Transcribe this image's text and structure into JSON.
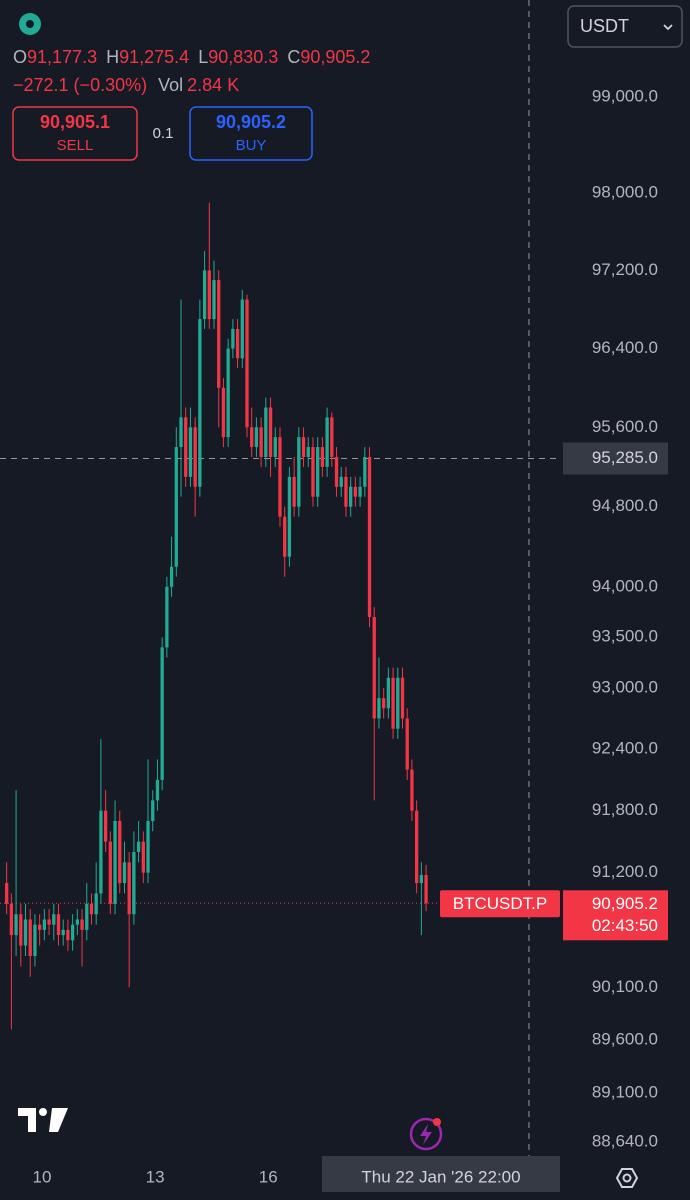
{
  "header": {
    "ohlc": [
      {
        "key": "O",
        "value": "91,177.3"
      },
      {
        "key": "H",
        "value": "91,275.4"
      },
      {
        "key": "L",
        "value": "90,830.3"
      },
      {
        "key": "C",
        "value": "90,905.2"
      }
    ],
    "change": "−272.1 (−0.30%)",
    "volume_key": "Vol",
    "volume": "2.84 K",
    "sell_price": "90,905.1",
    "sell_label": "SELL",
    "quantity": "0.1",
    "buy_price": "90,905.2",
    "buy_label": "BUY",
    "currency": "USDT"
  },
  "chart_data": {
    "type": "candlestick",
    "symbol": "BTCUSDT.P",
    "countdown": "02:43:50",
    "up_color": "#22ab94",
    "down_color": "#f23645",
    "log_scale": true,
    "x": [
      9,
      9.125,
      9.25,
      9.375,
      9.5,
      9.625,
      9.75,
      9.875,
      10,
      10.125,
      10.25,
      10.375,
      10.5,
      10.625,
      10.75,
      10.875,
      11,
      11.125,
      11.25,
      11.375,
      11.5,
      11.625,
      11.75,
      11.875,
      12,
      12.125,
      12.25,
      12.375,
      12.5,
      12.625,
      12.75,
      12.875,
      13,
      13.125,
      13.25,
      13.375,
      13.5,
      13.625,
      13.75,
      13.875,
      14,
      14.125,
      14.25,
      14.375,
      14.5,
      14.625,
      14.75,
      14.875,
      15,
      15.125,
      15.25,
      15.375,
      15.5,
      15.625,
      15.75,
      15.875,
      16,
      16.125,
      16.25,
      16.375,
      16.5,
      16.625,
      16.75,
      16.875,
      17,
      17.125,
      17.25,
      17.375,
      17.5,
      17.625,
      17.75,
      17.875,
      18,
      18.125,
      18.25,
      18.375,
      18.5,
      18.625,
      18.75,
      18.875,
      19,
      19.125,
      19.25,
      19.375,
      19.5,
      19.625,
      19.75,
      19.875,
      20,
      20.125
    ],
    "open": [
      91100,
      90900,
      90600,
      90800,
      90500,
      90750,
      90400,
      90700,
      90650,
      90750,
      90700,
      90800,
      90600,
      90650,
      90550,
      90700,
      90750,
      90650,
      90900,
      90800,
      91000,
      91800,
      91500,
      90900,
      91700,
      91100,
      91300,
      90800,
      91400,
      91500,
      91200,
      91700,
      91900,
      92100,
      93400,
      94000,
      94200,
      95400,
      95700,
      95100,
      95600,
      95000,
      96700,
      97200,
      96700,
      97100,
      96000,
      95500,
      96400,
      96600,
      96300,
      96900,
      95600,
      95400,
      95600,
      95300,
      95800,
      95300,
      95500,
      94700,
      94300,
      95100,
      94800,
      95500,
      95300,
      95400,
      94900,
      95400,
      95200,
      95700,
      95300,
      95000,
      95100,
      94800,
      95000,
      94900,
      95000,
      95300,
      93700,
      92700,
      92900,
      92800,
      93100,
      92600,
      93100,
      92700,
      92200,
      91800,
      91100,
      91177.3
    ],
    "high": [
      91300,
      91000,
      92000,
      90900,
      90900,
      90850,
      90800,
      90800,
      90850,
      90850,
      90900,
      90900,
      90750,
      90750,
      90800,
      90850,
      90850,
      91100,
      91000,
      91300,
      92500,
      92000,
      91600,
      91900,
      91800,
      91500,
      91400,
      91600,
      91700,
      91600,
      92300,
      92000,
      92300,
      93500,
      94100,
      94500,
      95600,
      96900,
      95800,
      95800,
      95700,
      96900,
      97400,
      97900,
      97300,
      97200,
      96100,
      96500,
      96700,
      96700,
      97000,
      96950,
      95800,
      95700,
      95700,
      95900,
      95900,
      95600,
      95600,
      94800,
      95200,
      95300,
      95600,
      95600,
      95500,
      95500,
      95500,
      95500,
      95800,
      95750,
      95400,
      95200,
      95200,
      95100,
      95100,
      95100,
      95400,
      95400,
      93800,
      93300,
      93000,
      93200,
      93200,
      93200,
      93200,
      92800,
      92300,
      91900,
      91300,
      91275.4
    ],
    "low": [
      90800,
      89700,
      90400,
      90300,
      90400,
      90200,
      90300,
      90500,
      90550,
      90600,
      90550,
      90500,
      90500,
      90450,
      90450,
      90600,
      90300,
      90550,
      90700,
      90700,
      90900,
      91400,
      90800,
      90800,
      91000,
      91000,
      90100,
      90700,
      91300,
      91100,
      91100,
      91600,
      91800,
      92000,
      93300,
      93900,
      94100,
      94900,
      95000,
      95000,
      94700,
      94900,
      96600,
      96600,
      96600,
      95600,
      95400,
      95400,
      96300,
      96200,
      96200,
      95500,
      95300,
      95300,
      95200,
      95200,
      95100,
      95200,
      94600,
      94100,
      94200,
      94700,
      94700,
      95200,
      95200,
      94800,
      94800,
      95100,
      95100,
      95200,
      94900,
      94900,
      94700,
      94700,
      94800,
      94800,
      94900,
      93600,
      91900,
      92600,
      92700,
      92700,
      92500,
      92500,
      92600,
      92100,
      91700,
      91000,
      90600,
      90830.3
    ],
    "close": [
      90900,
      90600,
      90800,
      90500,
      90750,
      90400,
      90700,
      90650,
      90750,
      90700,
      90800,
      90600,
      90650,
      90550,
      90700,
      90750,
      90650,
      90900,
      90800,
      91000,
      91800,
      91500,
      90900,
      91700,
      91100,
      91300,
      90800,
      91400,
      91500,
      91200,
      91700,
      91900,
      92100,
      93400,
      94000,
      94200,
      95400,
      95700,
      95100,
      95600,
      95000,
      96700,
      97200,
      96700,
      97100,
      96000,
      95500,
      96400,
      96600,
      96300,
      96900,
      95600,
      95400,
      95600,
      95300,
      95800,
      95300,
      95500,
      94700,
      94300,
      95100,
      94800,
      95500,
      95300,
      95400,
      94900,
      95400,
      95200,
      95700,
      95300,
      95000,
      95100,
      94800,
      95000,
      94900,
      95000,
      95300,
      93700,
      92700,
      92900,
      92800,
      93100,
      92600,
      93100,
      92700,
      92200,
      91800,
      91100,
      91177.3,
      90905.2
    ],
    "xlim": [
      8.886,
      23.74
    ],
    "xticks": [
      10,
      13,
      16
    ],
    "ylim": [
      88470,
      100020
    ],
    "yticks": [
      {
        "value": 99000,
        "label": "99,000.0"
      },
      {
        "value": 98000,
        "label": "98,000.0"
      },
      {
        "value": 97200,
        "label": "97,200.0"
      },
      {
        "value": 96400,
        "label": "96,400.0"
      },
      {
        "value": 95600,
        "label": "95,600.0"
      },
      {
        "value": 94800,
        "label": "94,800.0"
      },
      {
        "value": 94000,
        "label": "94,000.0"
      },
      {
        "value": 93500,
        "label": "93,500.0"
      },
      {
        "value": 93000,
        "label": "93,000.0"
      },
      {
        "value": 92400,
        "label": "92,400.0"
      },
      {
        "value": 91800,
        "label": "91,800.0"
      },
      {
        "value": 91200,
        "label": "91,200.0"
      },
      {
        "value": 90100,
        "label": "90,100.0"
      },
      {
        "value": 89600,
        "label": "89,600.0"
      },
      {
        "value": 89100,
        "label": "89,100.0"
      },
      {
        "value": 88640,
        "label": "88,640.0"
      }
    ],
    "crosshair": {
      "y": {
        "value": 95285,
        "label": "95,285.0"
      },
      "x": {
        "value": 22.917,
        "label": "Thu 22 Jan '26   22:00"
      }
    },
    "last_price": {
      "value": 90905.2,
      "label": "90,905.2"
    }
  }
}
